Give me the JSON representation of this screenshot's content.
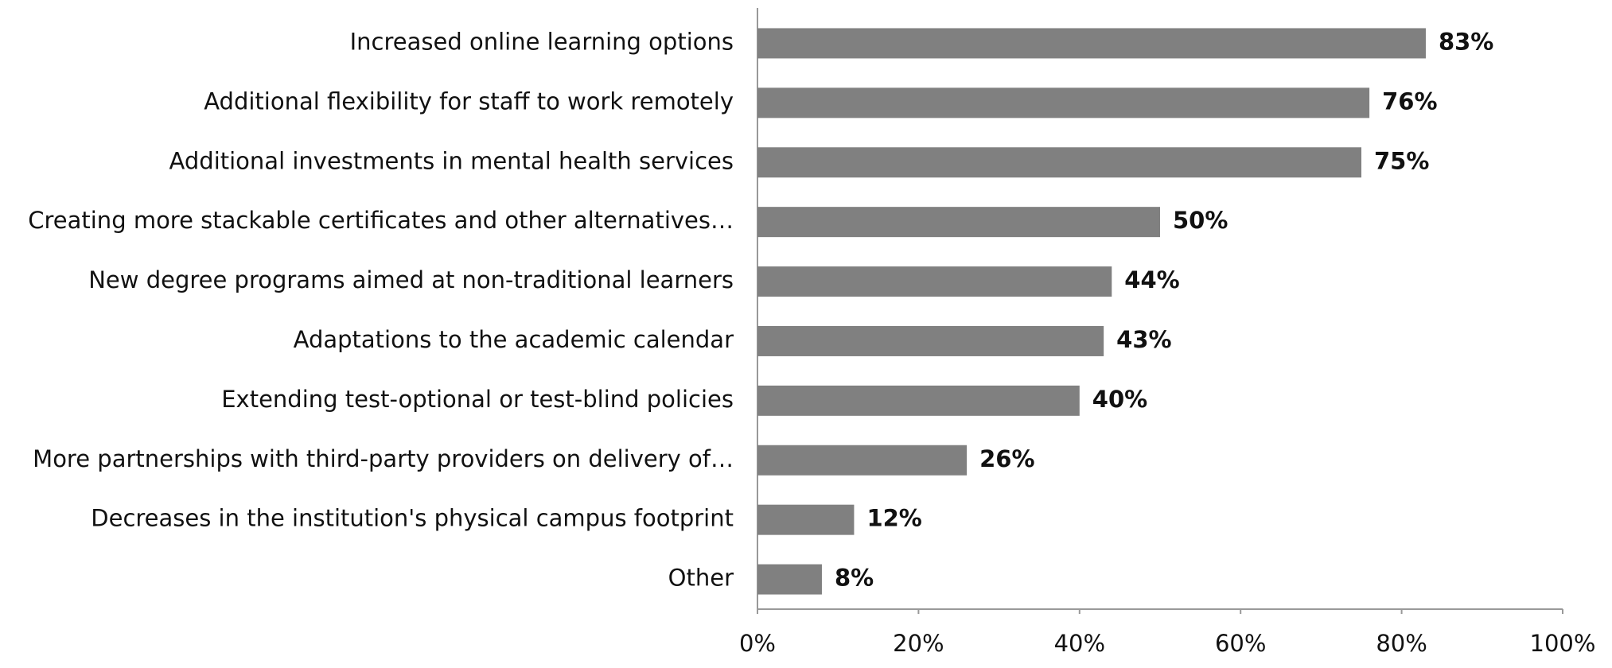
{
  "chart_data": {
    "type": "bar",
    "orientation": "horizontal",
    "categories": [
      "Increased online learning options",
      "Additional flexibility for staff to work remotely",
      "Additional investments in mental health services",
      "Creating more stackable certificates and other alternatives…",
      "New degree programs aimed at non-traditional learners",
      "Adaptations to the academic calendar",
      "Extending test-optional or test-blind policies",
      "More partnerships with third-party providers on delivery of…",
      "Decreases in the institution's physical campus footprint",
      "Other"
    ],
    "values": [
      83,
      76,
      75,
      50,
      44,
      43,
      40,
      26,
      12,
      8
    ],
    "value_labels": [
      "83%",
      "76%",
      "75%",
      "50%",
      "44%",
      "43%",
      "40%",
      "26%",
      "12%",
      "8%"
    ],
    "color": "#808080",
    "xlim": [
      0,
      100
    ],
    "xticks": [
      {
        "value": 0,
        "label": "0%"
      },
      {
        "value": 20,
        "label": "20%"
      },
      {
        "value": 40,
        "label": "40%"
      },
      {
        "value": 60,
        "label": "60%"
      },
      {
        "value": 80,
        "label": "80%"
      },
      {
        "value": 100,
        "label": "100%"
      }
    ],
    "grid": false
  }
}
